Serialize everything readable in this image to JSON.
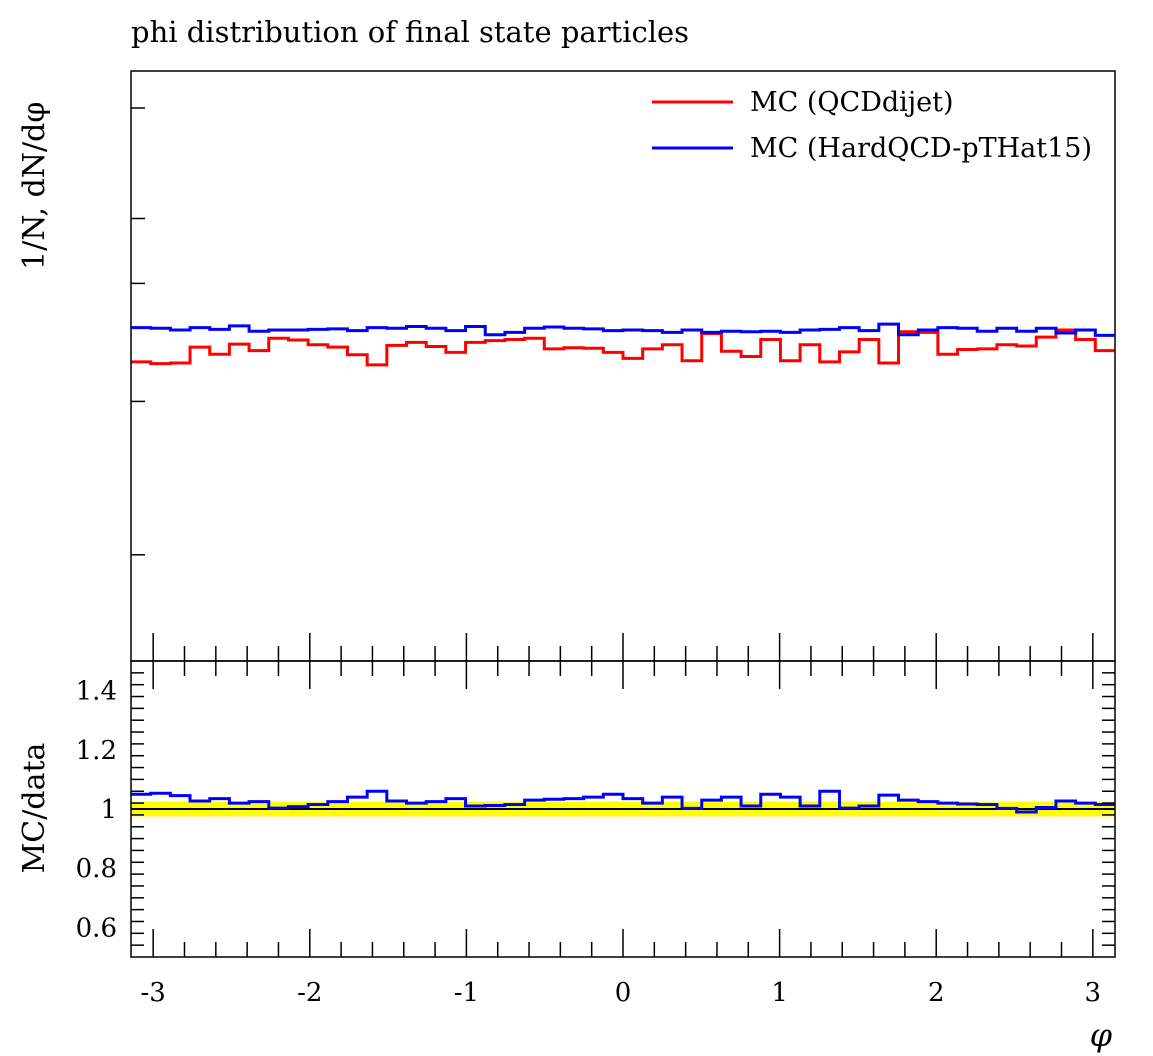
{
  "title": "phi distribution of final state particles",
  "colors": {
    "qcd": "#ff0000",
    "hard": "#0000ff",
    "band": "#ffff00"
  },
  "chart_data": [
    {
      "type": "line",
      "panel": "main",
      "ylabel": "1/N, dN/dφ",
      "xlim": [
        -3.1416,
        3.1416
      ],
      "ylim": [
        0,
        1
      ],
      "ytick_labels": [],
      "legend_position": "top-right",
      "x_edges": [
        -3.1416,
        -3.0159,
        -2.8903,
        -2.7646,
        -2.6389,
        -2.5133,
        -2.3876,
        -2.2619,
        -2.1363,
        -2.0106,
        -1.885,
        -1.7593,
        -1.6336,
        -1.508,
        -1.3823,
        -1.2566,
        -1.131,
        -1.0053,
        -0.8796,
        -0.754,
        -0.6283,
        -0.5027,
        -0.377,
        -0.2513,
        -0.1257,
        0.0,
        0.1257,
        0.2513,
        0.377,
        0.5027,
        0.6283,
        0.754,
        0.8796,
        1.0053,
        1.131,
        1.2566,
        1.3823,
        1.508,
        1.6336,
        1.7593,
        1.885,
        2.0106,
        2.1363,
        2.2619,
        2.3876,
        2.5133,
        2.6389,
        2.7646,
        2.8903,
        3.0159,
        3.1416
      ],
      "series": [
        {
          "name": "MC (QCDdijet)",
          "color": "#ff0000",
          "values": [
            0.507,
            0.504,
            0.505,
            0.532,
            0.52,
            0.537,
            0.526,
            0.547,
            0.544,
            0.536,
            0.532,
            0.519,
            0.502,
            0.535,
            0.54,
            0.533,
            0.523,
            0.54,
            0.543,
            0.545,
            0.547,
            0.529,
            0.531,
            0.53,
            0.523,
            0.513,
            0.529,
            0.536,
            0.509,
            0.555,
            0.525,
            0.516,
            0.545,
            0.509,
            0.536,
            0.507,
            0.524,
            0.545,
            0.505,
            0.558,
            0.557,
            0.52,
            0.528,
            0.529,
            0.536,
            0.534,
            0.549,
            0.561,
            0.545,
            0.526
          ]
        },
        {
          "name": "MC (HardQCD-pTHat15)",
          "color": "#0000ff",
          "values": [
            0.565,
            0.564,
            0.561,
            0.565,
            0.562,
            0.568,
            0.559,
            0.561,
            0.561,
            0.562,
            0.563,
            0.56,
            0.565,
            0.564,
            0.567,
            0.564,
            0.56,
            0.567,
            0.553,
            0.557,
            0.564,
            0.566,
            0.564,
            0.563,
            0.56,
            0.561,
            0.56,
            0.557,
            0.561,
            0.557,
            0.559,
            0.558,
            0.559,
            0.557,
            0.561,
            0.562,
            0.565,
            0.56,
            0.571,
            0.553,
            0.561,
            0.565,
            0.564,
            0.559,
            0.564,
            0.559,
            0.564,
            0.556,
            0.561,
            0.552
          ]
        }
      ]
    },
    {
      "type": "line",
      "panel": "ratio",
      "ylabel": "MC/data",
      "xlabel": "φ",
      "xlim": [
        -3.1416,
        3.1416
      ],
      "ylim": [
        0.5,
        1.5
      ],
      "yticks": [
        0.6,
        0.8,
        1,
        1.2,
        1.4
      ],
      "ytick_labels": [
        "0.6",
        "0.8",
        "1",
        "1.2",
        "1.4"
      ],
      "xticks": [
        -3,
        -2,
        -1,
        0,
        1,
        2,
        3
      ],
      "xtick_labels": [
        "-3",
        "-2",
        "-1",
        "0",
        "1",
        "2",
        "3"
      ],
      "reference_line": 1,
      "band": [
        0.975,
        1.025
      ],
      "series": [
        {
          "name": "MC (HardQCD-pTHat15)",
          "color": "#0000ff",
          "values": [
            1.05,
            1.053,
            1.045,
            1.027,
            1.035,
            1.02,
            1.025,
            1.003,
            1.008,
            1.015,
            1.025,
            1.04,
            1.06,
            1.027,
            1.02,
            1.025,
            1.035,
            1.01,
            1.012,
            1.015,
            1.03,
            1.033,
            1.035,
            1.04,
            1.05,
            1.035,
            1.02,
            1.04,
            1.002,
            1.03,
            1.04,
            1.01,
            1.05,
            1.04,
            1.01,
            1.06,
            1.003,
            1.01,
            1.047,
            1.03,
            1.025,
            1.02,
            1.017,
            1.015,
            1.002,
            0.99,
            1.005,
            1.027,
            1.02,
            1.015
          ]
        }
      ]
    }
  ]
}
